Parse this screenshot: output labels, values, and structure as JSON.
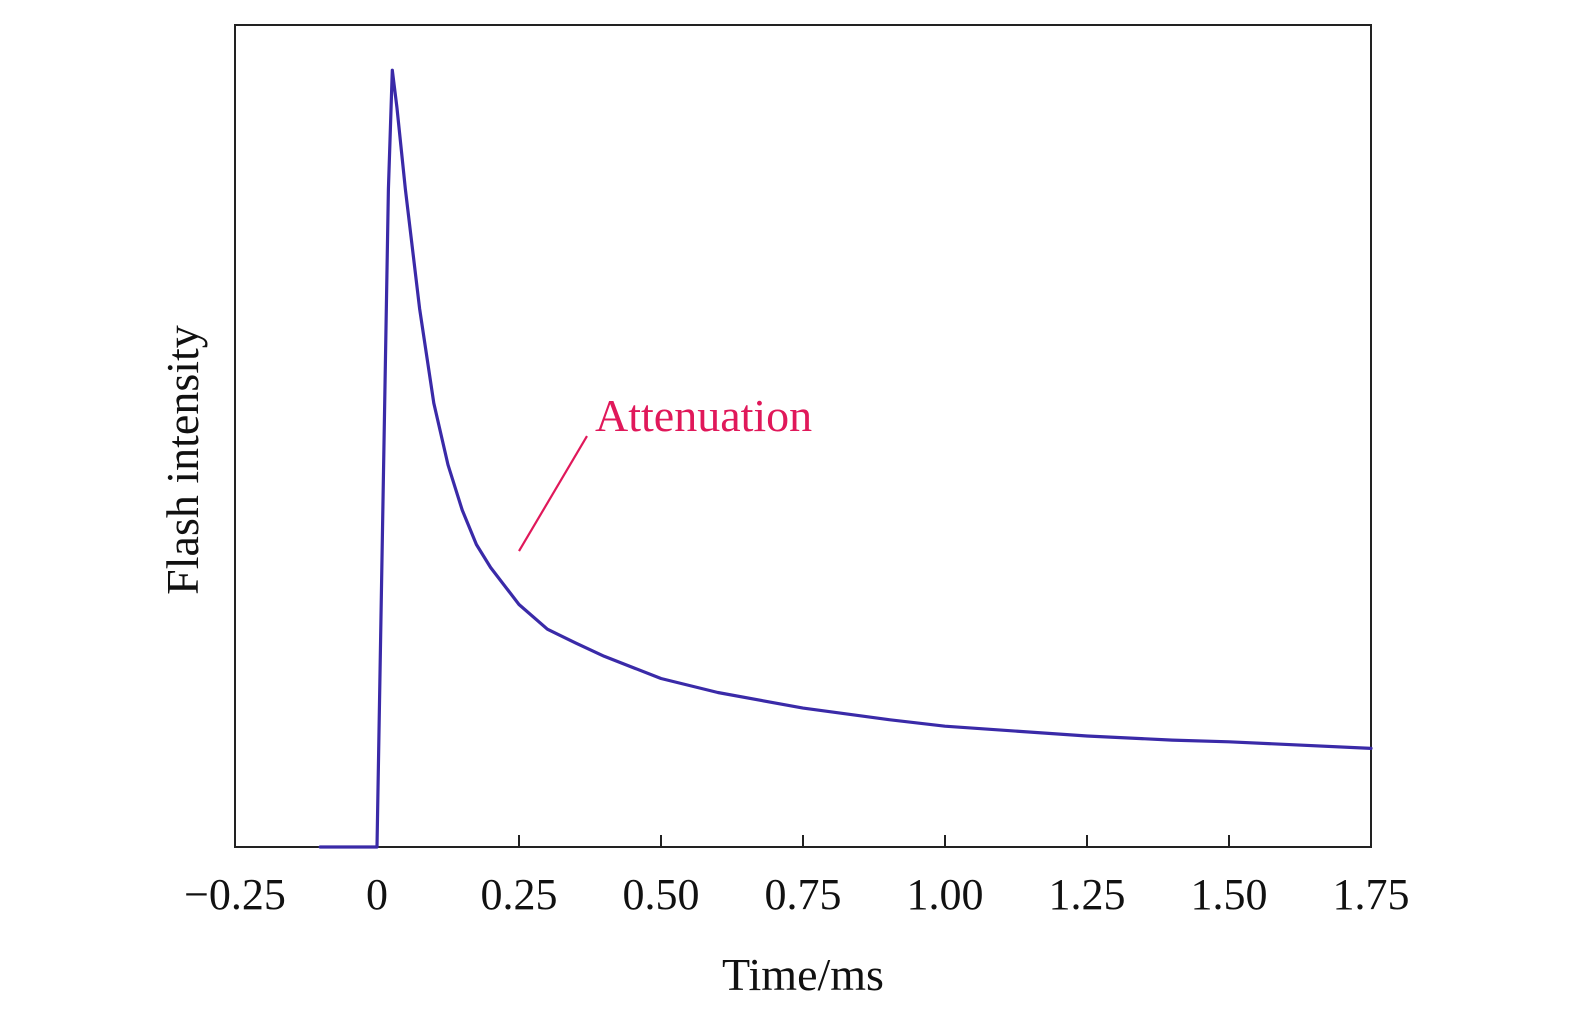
{
  "chart_data": {
    "type": "line",
    "title": "",
    "xlabel": "Time/ms",
    "ylabel": "Flash intensity",
    "xlim": [
      -0.25,
      1.75
    ],
    "ylim": [
      0,
      1.0
    ],
    "xticks": [
      -0.25,
      0,
      0.25,
      0.5,
      0.75,
      1.0,
      1.25,
      1.5,
      1.75
    ],
    "xtick_labels": [
      "−0.25",
      "0",
      "0.25",
      "0.50",
      "0.75",
      "1.00",
      "1.25",
      "1.50",
      "1.75"
    ],
    "yticks_shown": false,
    "grid": false,
    "series": [
      {
        "color": "#3a2aa8",
        "x": [
          -0.1,
          -0.01,
          0.0,
          0.01,
          0.02,
          0.027,
          0.035,
          0.05,
          0.075,
          0.1,
          0.125,
          0.15,
          0.175,
          0.2,
          0.25,
          0.3,
          0.35,
          0.4,
          0.5,
          0.6,
          0.75,
          0.9,
          1.0,
          1.25,
          1.4,
          1.5,
          1.75
        ],
        "y": [
          0.0,
          0.0,
          0.0,
          0.4,
          0.8,
          0.945,
          0.9,
          0.8,
          0.655,
          0.54,
          0.465,
          0.41,
          0.368,
          0.34,
          0.295,
          0.265,
          0.248,
          0.232,
          0.205,
          0.188,
          0.169,
          0.155,
          0.147,
          0.135,
          0.13,
          0.128,
          0.12
        ]
      }
    ],
    "annotations": [
      {
        "text": "Attenuation",
        "color": "#e0185a",
        "point": [
          0.25,
          0.36
        ]
      }
    ]
  }
}
